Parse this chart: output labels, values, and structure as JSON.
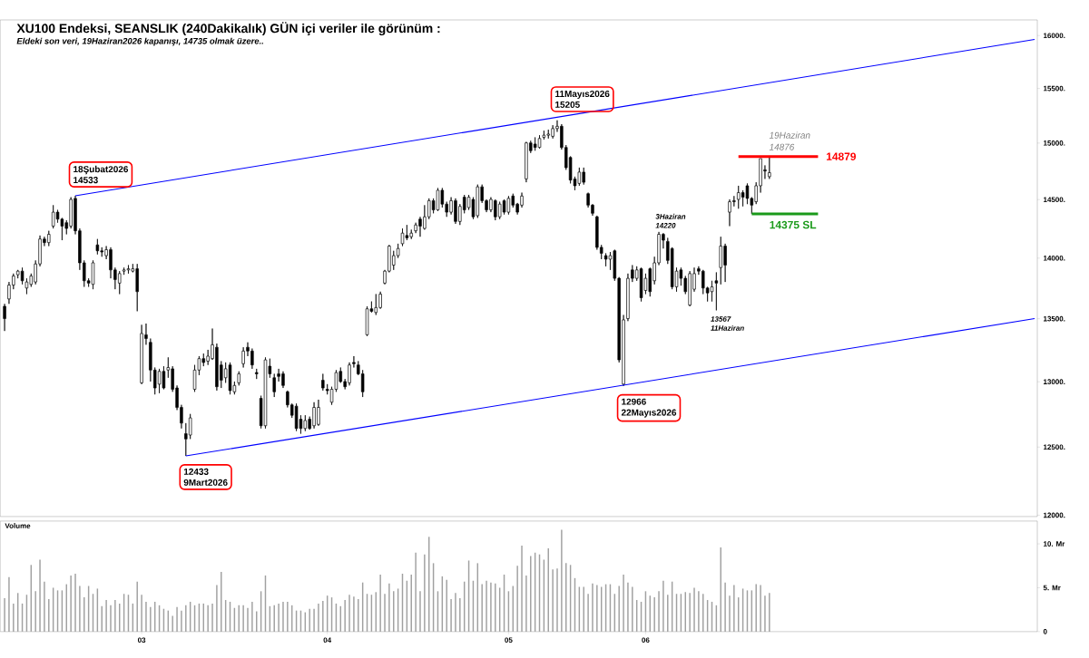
{
  "chart_data": [
    {
      "type": "candlestick",
      "title": "XU100 Endeksi, SEANSLIK (240Dakikalık) GÜN içi veriler ile görünüm :",
      "subtitle": "Eldeki son veri, 19Haziran2026 kapanışı, 14735 olmak üzere..",
      "categories": [
        null,
        null,
        null,
        null,
        null,
        null,
        null,
        null,
        null,
        null,
        null,
        null,
        null,
        null,
        null,
        null,
        null,
        null,
        null,
        null,
        null,
        null,
        null,
        null,
        null,
        null,
        null,
        null,
        null,
        null,
        null,
        "03",
        null,
        null,
        null,
        null,
        null,
        null,
        null,
        null,
        null,
        null,
        null,
        null,
        null,
        null,
        null,
        null,
        null,
        null,
        null,
        null,
        null,
        null,
        null,
        null,
        null,
        null,
        null,
        null,
        null,
        null,
        null,
        null,
        null,
        null,
        null,
        null,
        null,
        null,
        null,
        null,
        null,
        "04",
        null,
        null,
        null,
        null,
        null,
        null,
        null,
        null,
        null,
        null,
        null,
        null,
        null,
        null,
        null,
        null,
        null,
        null,
        null,
        null,
        null,
        null,
        null,
        null,
        null,
        null,
        null,
        null,
        null,
        null,
        null,
        null,
        null,
        null,
        null,
        null,
        null,
        null,
        null,
        null,
        "05",
        null,
        null,
        null,
        null,
        null,
        null,
        null,
        null,
        null,
        null,
        null,
        null,
        null,
        null,
        null,
        null,
        null,
        null,
        null,
        null,
        null,
        null,
        null,
        null,
        null,
        null,
        null,
        null,
        null,
        null,
        "06",
        null,
        null,
        null,
        null,
        null,
        null,
        null,
        null,
        null,
        null,
        null,
        null,
        null,
        null,
        null,
        null,
        null,
        null,
        null,
        null,
        null,
        null,
        null,
        null,
        null,
        null,
        null,
        null,
        null,
        null,
        null,
        null,
        null,
        null,
        null,
        null,
        null,
        null,
        null,
        null,
        null,
        null,
        null,
        null,
        null,
        null,
        null,
        null,
        null,
        null,
        null,
        null,
        null,
        null,
        null,
        null,
        null,
        null,
        null,
        null,
        null,
        null,
        null,
        null,
        null,
        null,
        null,
        null,
        null,
        null,
        null,
        null,
        null,
        null,
        null,
        null,
        null,
        null,
        null,
        null,
        null,
        null,
        null,
        null,
        null,
        null,
        null,
        null
      ],
      "ohlc": [
        [
          13600,
          13620,
          13400,
          13500
        ],
        [
          13660,
          13800,
          13620,
          13775
        ],
        [
          13775,
          13870,
          13740,
          13850
        ],
        [
          13860,
          13900,
          13830,
          13890
        ],
        [
          13890,
          13920,
          13780,
          13810
        ],
        [
          13750,
          13830,
          13700,
          13800
        ],
        [
          13780,
          13870,
          13760,
          13850
        ],
        [
          13800,
          13980,
          13780,
          13950
        ],
        [
          13950,
          14190,
          13930,
          14160
        ],
        [
          14160,
          14180,
          14100,
          14130
        ],
        [
          14130,
          14230,
          14100,
          14200
        ],
        [
          14270,
          14450,
          14250,
          14390
        ],
        [
          14390,
          14410,
          14300,
          14330
        ],
        [
          14330,
          14340,
          14150,
          14270
        ],
        [
          14300,
          14320,
          14200,
          14250
        ],
        [
          14270,
          14520,
          14250,
          14500
        ],
        [
          14510,
          14533,
          14200,
          14230
        ],
        [
          14230,
          14250,
          13900,
          13960
        ],
        [
          13960,
          13980,
          13760,
          13810
        ],
        [
          13810,
          13830,
          13760,
          13790
        ],
        [
          13780,
          13980,
          13740,
          13960
        ],
        [
          14110,
          14160,
          14030,
          14060
        ],
        [
          14060,
          14090,
          14010,
          14050
        ],
        [
          14020,
          14100,
          13990,
          14070
        ],
        [
          14070,
          14090,
          13830,
          13900
        ],
        [
          13900,
          13920,
          13740,
          13820
        ],
        [
          13790,
          13890,
          13700,
          13870
        ],
        [
          13890,
          13920,
          13860,
          13900
        ],
        [
          13900,
          13940,
          13870,
          13910
        ],
        [
          13890,
          13950,
          13880,
          13910
        ],
        [
          13910,
          13950,
          13560,
          13720
        ],
        [
          12990,
          13450,
          12980,
          13380
        ],
        [
          13370,
          13460,
          13290,
          13340
        ],
        [
          13310,
          13340,
          13000,
          13090
        ],
        [
          13090,
          13110,
          12900,
          12950
        ],
        [
          12980,
          13100,
          12910,
          13080
        ],
        [
          13080,
          13120,
          12940,
          12950
        ],
        [
          13090,
          13190,
          13030,
          13110
        ],
        [
          13100,
          13120,
          12920,
          12940
        ],
        [
          12950,
          12970,
          12780,
          12800
        ],
        [
          12800,
          12820,
          12640,
          12680
        ],
        [
          12600,
          12680,
          12433,
          12560
        ],
        [
          12590,
          12750,
          12560,
          12720
        ],
        [
          12940,
          13130,
          12920,
          13090
        ],
        [
          13090,
          13200,
          13050,
          13180
        ],
        [
          13180,
          13220,
          13120,
          13150
        ],
        [
          13160,
          13250,
          13130,
          13200
        ],
        [
          13180,
          13420,
          13170,
          13290
        ],
        [
          13270,
          13300,
          12930,
          12960
        ],
        [
          13130,
          13160,
          12950,
          13010
        ],
        [
          13030,
          13150,
          12990,
          13100
        ],
        [
          13130,
          13150,
          12900,
          12930
        ],
        [
          12920,
          13000,
          12900,
          12970
        ],
        [
          12990,
          13080,
          12970,
          13060
        ],
        [
          13140,
          13270,
          13110,
          13240
        ],
        [
          13270,
          13310,
          13200,
          13240
        ],
        [
          13240,
          13260,
          13100,
          13130
        ],
        [
          13070,
          13100,
          13020,
          13060
        ],
        [
          12870,
          12890,
          12640,
          12660
        ],
        [
          12660,
          13190,
          12640,
          13170
        ],
        [
          13120,
          13180,
          13030,
          13060
        ],
        [
          13030,
          13060,
          12880,
          12920
        ],
        [
          13060,
          13100,
          13000,
          13040
        ],
        [
          13060,
          13080,
          12950,
          12970
        ],
        [
          12920,
          12930,
          12800,
          12820
        ],
        [
          12820,
          12830,
          12720,
          12740
        ],
        [
          12810,
          12830,
          12620,
          12640
        ],
        [
          12710,
          12740,
          12600,
          12640
        ],
        [
          12640,
          12740,
          12620,
          12700
        ],
        [
          12710,
          12730,
          12630,
          12640
        ],
        [
          12660,
          12840,
          12640,
          12800
        ],
        [
          12670,
          12860,
          12660,
          12800
        ],
        [
          13010,
          13060,
          12930,
          12950
        ],
        [
          12940,
          12980,
          12900,
          12930
        ],
        [
          12840,
          12960,
          12820,
          12940
        ],
        [
          12940,
          13090,
          12920,
          13070
        ],
        [
          13080,
          13110,
          12990,
          13000
        ],
        [
          13000,
          13020,
          12940,
          12960
        ],
        [
          12990,
          13150,
          12970,
          13130
        ],
        [
          13150,
          13200,
          13110,
          13140
        ],
        [
          13130,
          13160,
          13050,
          13060
        ],
        [
          13060,
          13090,
          12880,
          12920
        ],
        [
          13370,
          13600,
          13360,
          13580
        ],
        [
          13580,
          13640,
          13550,
          13560
        ],
        [
          13550,
          13700,
          13530,
          13590
        ],
        [
          13590,
          13720,
          13580,
          13700
        ],
        [
          13790,
          13900,
          13780,
          13890
        ],
        [
          13890,
          14110,
          13880,
          14100
        ],
        [
          13940,
          14060,
          13900,
          14020
        ],
        [
          14020,
          14120,
          14000,
          14080
        ],
        [
          14120,
          14250,
          14100,
          14210
        ],
        [
          14190,
          14280,
          14150,
          14170
        ],
        [
          14180,
          14240,
          14160,
          14210
        ],
        [
          14230,
          14300,
          14210,
          14280
        ],
        [
          14330,
          14350,
          14180,
          14270
        ],
        [
          14250,
          14450,
          14240,
          14350
        ],
        [
          14350,
          14510,
          14330,
          14490
        ],
        [
          14490,
          14510,
          14380,
          14410
        ],
        [
          14410,
          14600,
          14400,
          14580
        ],
        [
          14580,
          14600,
          14430,
          14460
        ],
        [
          14460,
          14480,
          14350,
          14390
        ],
        [
          14390,
          14520,
          14370,
          14490
        ],
        [
          14490,
          14510,
          14290,
          14310
        ],
        [
          14310,
          14460,
          14280,
          14440
        ],
        [
          14520,
          14540,
          14380,
          14410
        ],
        [
          14430,
          14540,
          14410,
          14520
        ],
        [
          14500,
          14520,
          14330,
          14350
        ],
        [
          14360,
          14630,
          14340,
          14610
        ],
        [
          14610,
          14630,
          14470,
          14490
        ],
        [
          14490,
          14500,
          14390,
          14410
        ],
        [
          14410,
          14520,
          14390,
          14500
        ],
        [
          14490,
          14500,
          14320,
          14350
        ],
        [
          14350,
          14480,
          14330,
          14460
        ],
        [
          14490,
          14500,
          14370,
          14390
        ],
        [
          14390,
          14530,
          14370,
          14510
        ],
        [
          14530,
          14550,
          14430,
          14450
        ],
        [
          14460,
          14470,
          14370,
          14390
        ],
        [
          14450,
          14560,
          14430,
          14530
        ],
        [
          14680,
          15010,
          14650,
          15000
        ],
        [
          15000,
          15020,
          14910,
          14930
        ],
        [
          14990,
          15050,
          14930,
          14960
        ],
        [
          14960,
          15070,
          14950,
          15040
        ],
        [
          15050,
          15110,
          15030,
          15070
        ],
        [
          15070,
          15120,
          15040,
          15080
        ],
        [
          15060,
          15160,
          15040,
          15130
        ],
        [
          15130,
          15205,
          15100,
          15150
        ],
        [
          15150,
          15170,
          14940,
          14960
        ],
        [
          14960,
          14980,
          14760,
          14780
        ],
        [
          14870,
          14880,
          14640,
          14670
        ],
        [
          14680,
          14700,
          14580,
          14620
        ],
        [
          14640,
          14780,
          14620,
          14740
        ],
        [
          14740,
          14780,
          14630,
          14650
        ],
        [
          14550,
          14560,
          14430,
          14450
        ],
        [
          14450,
          14460,
          14360,
          14380
        ],
        [
          14350,
          14360,
          14070,
          14090
        ],
        [
          14090,
          14110,
          13990,
          14040
        ],
        [
          14020,
          14040,
          13930,
          13990
        ],
        [
          13990,
          14050,
          13900,
          14020
        ],
        [
          14060,
          14070,
          13810,
          13830
        ],
        [
          13830,
          13840,
          13150,
          13170
        ],
        [
          12980,
          13530,
          12966,
          13490
        ],
        [
          13500,
          13870,
          13480,
          13830
        ],
        [
          13900,
          13940,
          13800,
          13830
        ],
        [
          13830,
          13930,
          13810,
          13900
        ],
        [
          13910,
          13920,
          13640,
          13670
        ],
        [
          13730,
          13870,
          13700,
          13830
        ],
        [
          13910,
          13920,
          13680,
          13720
        ],
        [
          13810,
          14010,
          13780,
          13960
        ],
        [
          13960,
          14220,
          13940,
          14200
        ],
        [
          14200,
          14210,
          14080,
          14150
        ],
        [
          14140,
          14170,
          13950,
          13980
        ],
        [
          14080,
          14090,
          13740,
          13760
        ],
        [
          13760,
          13920,
          13720,
          13890
        ],
        [
          13900,
          13920,
          13770,
          13830
        ],
        [
          13830,
          13850,
          13700,
          13720
        ],
        [
          13610,
          13890,
          13600,
          13870
        ],
        [
          13740,
          13920,
          13720,
          13870
        ],
        [
          13910,
          13930,
          13860,
          13890
        ],
        [
          13890,
          13900,
          13700,
          13750
        ],
        [
          13750,
          13760,
          13640,
          13710
        ],
        [
          13720,
          13810,
          13640,
          13760
        ],
        [
          13810,
          13880,
          13567,
          13790
        ],
        [
          13920,
          14180,
          13780,
          14100
        ],
        [
          14100,
          14120,
          13800,
          13940
        ],
        [
          14390,
          14500,
          14270,
          14480
        ],
        [
          14490,
          14530,
          14440,
          14480
        ],
        [
          14500,
          14620,
          14420,
          14560
        ],
        [
          14560,
          14580,
          14440,
          14520
        ],
        [
          14620,
          14640,
          14460,
          14510
        ],
        [
          14510,
          14520,
          14375,
          14450
        ],
        [
          14480,
          14650,
          14460,
          14620
        ],
        [
          14620,
          14860,
          14560,
          14860
        ],
        [
          14760,
          14800,
          14680,
          14750
        ],
        [
          14700,
          14876,
          14680,
          14735
        ],
        null,
        null,
        null,
        null,
        null,
        null,
        null,
        null,
        null,
        null,
        null,
        null,
        null,
        null,
        null,
        null,
        null,
        null,
        null,
        null,
        null,
        null,
        null,
        null,
        null,
        null,
        null,
        null,
        null,
        null,
        null,
        null,
        null,
        null,
        null,
        null,
        null,
        null,
        null,
        null,
        null,
        null,
        null,
        null,
        null,
        null,
        null,
        null,
        null,
        null,
        null,
        null,
        null,
        null,
        null,
        null,
        null,
        null,
        null,
        null
      ],
      "series": [
        {
          "type": "line",
          "color": "#0000ff",
          "values": [
            null,
            null,
            null,
            null,
            null,
            null,
            null,
            null,
            null,
            null,
            null,
            null,
            null,
            null,
            null,
            null,
            14533,
            null,
            null,
            null,
            null,
            null,
            null,
            null,
            null,
            null,
            null,
            null,
            null,
            null,
            null,
            null,
            null,
            null,
            null,
            null,
            null,
            null,
            null,
            null,
            null,
            null,
            null,
            null,
            null,
            null,
            null,
            null,
            null,
            null,
            null,
            null,
            null,
            null,
            null,
            null,
            null,
            null,
            null,
            null,
            null,
            null,
            null,
            null,
            null,
            null,
            null,
            null,
            null,
            null,
            null,
            null,
            null,
            null,
            null,
            null,
            null,
            null,
            null,
            null,
            null,
            null,
            null,
            null,
            null,
            null,
            null,
            null,
            null,
            null,
            null,
            null,
            null,
            null,
            null,
            null,
            null,
            null,
            null,
            null,
            null,
            null,
            null,
            null,
            null,
            null,
            null,
            null,
            null,
            null,
            null,
            null,
            null,
            null,
            null,
            null,
            null,
            null,
            null,
            null,
            null,
            null,
            null,
            null,
            null,
            null,
            null,
            null,
            null,
            null,
            null,
            null,
            null,
            null,
            null,
            null,
            null,
            null,
            null,
            null,
            null,
            null,
            null,
            null,
            null,
            null,
            null,
            null,
            null,
            null,
            null,
            null,
            null,
            null,
            null,
            null,
            null,
            null,
            null,
            null,
            null,
            null,
            null,
            null,
            null,
            null,
            null,
            null,
            null,
            null,
            null,
            null,
            null,
            null,
            null,
            null,
            null,
            null,
            null,
            null,
            null,
            null,
            null,
            null,
            null,
            null,
            null,
            null,
            null,
            null,
            null,
            null,
            null,
            null,
            null,
            null,
            null,
            null,
            null,
            null,
            null,
            null,
            null,
            null,
            null,
            null,
            null,
            null,
            null,
            null,
            null,
            null,
            null,
            null,
            null,
            null,
            null,
            null,
            null,
            null,
            null,
            null,
            null,
            null,
            null,
            null,
            null,
            null,
            null,
            null,
            null,
            null,
            null,
            15960
          ]
        },
        {
          "type": "line",
          "color": "#0000ff",
          "values": [
            null,
            null,
            null,
            null,
            null,
            null,
            null,
            null,
            null,
            null,
            null,
            null,
            null,
            null,
            null,
            null,
            null,
            null,
            null,
            null,
            null,
            null,
            null,
            null,
            null,
            null,
            null,
            null,
            null,
            null,
            null,
            null,
            null,
            null,
            null,
            null,
            null,
            null,
            null,
            null,
            null,
            12433,
            null,
            null,
            null,
            null,
            null,
            null,
            null,
            null,
            null,
            null,
            null,
            null,
            null,
            null,
            null,
            null,
            null,
            null,
            null,
            null,
            null,
            null,
            null,
            null,
            null,
            null,
            null,
            null,
            null,
            null,
            null,
            null,
            null,
            null,
            null,
            null,
            null,
            null,
            null,
            null,
            null,
            null,
            null,
            null,
            null,
            null,
            null,
            null,
            null,
            null,
            null,
            null,
            null,
            null,
            null,
            null,
            null,
            null,
            null,
            null,
            null,
            null,
            null,
            null,
            null,
            null,
            null,
            null,
            null,
            null,
            null,
            null,
            null,
            null,
            null,
            null,
            null,
            null,
            null,
            null,
            null,
            null,
            null,
            null,
            null,
            null,
            null,
            null,
            null,
            null,
            null,
            null,
            null,
            null,
            null,
            null,
            null,
            null,
            null,
            null,
            null,
            null,
            null,
            null,
            null,
            null,
            null,
            null,
            null,
            null,
            null,
            null,
            null,
            null,
            null,
            null,
            null,
            null,
            null,
            null,
            null,
            null,
            null,
            null,
            null,
            null,
            null,
            null,
            null,
            null,
            null,
            null,
            null,
            null,
            null,
            null,
            null,
            null,
            null,
            null,
            null,
            null,
            null,
            null,
            null,
            null,
            null,
            null,
            null,
            null,
            null,
            null,
            null,
            null,
            null,
            null,
            null,
            null,
            null,
            null,
            null,
            null,
            null,
            null,
            null,
            null,
            null,
            null,
            null,
            null,
            null,
            null,
            null,
            null,
            null,
            null,
            null,
            null,
            null,
            null,
            null,
            null,
            null,
            null,
            null,
            null,
            null,
            null,
            null,
            null,
            null,
            13500
          ]
        }
      ],
      "ylim": [
        11990,
        16150
      ],
      "log": "y",
      "tick_labels": "y",
      "yticks": [
        {
          "value": 12000,
          "label": "12000."
        },
        {
          "value": 12500,
          "label": "12500."
        },
        {
          "value": 13000,
          "label": "13000."
        },
        {
          "value": 13500,
          "label": "13500."
        },
        {
          "value": 14000,
          "label": "14000."
        },
        {
          "value": 14500,
          "label": "14500."
        },
        {
          "value": 15000,
          "label": "15000."
        },
        {
          "value": 15500,
          "label": "15500."
        },
        {
          "value": 16000,
          "label": "16000."
        }
      ],
      "annotations": [
        {
          "text": "18Şubat2026",
          "y": 14533
        },
        {
          "text": "14533",
          "y": 14533
        },
        "11Mayıs2026",
        {
          "text": "15205",
          "y": 15205
        },
        {
          "text": "12433",
          "y": 12433
        },
        {
          "text": "9Mart2026",
          "y": 12433
        },
        {
          "text": "12966",
          "y": 12966
        },
        {
          "text": "22Mayıs2026",
          "y": 12966
        },
        "3Haziran",
        {
          "text": "14220",
          "y": 14220
        },
        "13567",
        "11Haziran",
        {
          "text": "19Haziran",
          "y": 14876
        },
        {
          "text": "14876",
          "y": 14876
        }
      ],
      "ref_lines": [
        {
          "axis": "y",
          "value": 14879,
          "label": "14879",
          "color": "#ff0000"
        },
        {
          "axis": "y",
          "value": 14375,
          "label": "14375 SL",
          "color": "#1a9a1a"
        }
      ]
    },
    {
      "type": "bar",
      "title": "Volume",
      "color": "#a0a0a0",
      "categories": [
        null,
        null,
        null,
        null,
        null,
        null,
        null,
        null,
        null,
        null,
        null,
        null,
        null,
        null,
        null,
        null,
        null,
        null,
        null,
        null,
        null,
        null,
        null,
        null,
        null,
        null,
        null,
        null,
        null,
        null,
        null,
        "03",
        null,
        null,
        null,
        null,
        null,
        null,
        null,
        null,
        null,
        null,
        null,
        null,
        null,
        null,
        null,
        null,
        null,
        null,
        null,
        null,
        null,
        null,
        null,
        null,
        null,
        null,
        null,
        null,
        null,
        null,
        null,
        null,
        null,
        null,
        null,
        null,
        null,
        null,
        null,
        null,
        null,
        "04",
        null,
        null,
        null,
        null,
        null,
        null,
        null,
        null,
        null,
        null,
        null,
        null,
        null,
        null,
        null,
        null,
        null,
        null,
        null,
        null,
        null,
        null,
        null,
        null,
        null,
        null,
        null,
        null,
        null,
        null,
        null,
        null,
        null,
        null,
        null,
        null,
        null,
        null,
        null,
        null,
        "05",
        null,
        null,
        null,
        null,
        null,
        null,
        null,
        null,
        null,
        null,
        null,
        null,
        null,
        null,
        null,
        null,
        null,
        null,
        null,
        null,
        null,
        null,
        null,
        null,
        null,
        null,
        null,
        null,
        null,
        null,
        "06",
        null,
        null,
        null,
        null,
        null,
        null,
        null,
        null,
        null,
        null,
        null,
        null,
        null,
        null,
        null,
        null,
        null,
        null,
        null,
        null,
        null,
        null,
        null,
        null,
        null,
        null,
        null,
        null,
        null,
        null,
        null,
        null,
        null,
        null,
        null,
        null,
        null,
        null,
        null,
        null,
        null,
        null,
        null,
        null,
        null,
        null,
        null,
        null,
        null,
        null,
        null,
        null,
        null,
        null,
        null,
        null,
        null,
        null,
        null,
        null,
        null,
        null,
        null,
        null,
        null,
        null,
        null,
        null,
        null,
        null,
        null,
        null,
        null,
        null,
        null,
        null,
        null,
        null,
        null,
        null,
        null,
        null,
        null,
        null,
        null,
        null,
        null,
        null
      ],
      "values": [
        3.8,
        6.2,
        3.2,
        4.4,
        3.2,
        4.2,
        7.6,
        4.6,
        8.2,
        5.7,
        3.7,
        5.0,
        4.7,
        4.7,
        5.4,
        6.4,
        6.6,
        5.2,
        3.9,
        5.2,
        4.3,
        4.9,
        2.9,
        3.6,
        3.0,
        3.6,
        3.2,
        4.3,
        4.2,
        3.2,
        5.7,
        4.2,
        3.4,
        2.8,
        3.4,
        3.0,
        2.6,
        2.4,
        1.8,
        2.8,
        2.4,
        3.0,
        3.4,
        3.0,
        3.2,
        3.2,
        3.0,
        3.2,
        5.3,
        6.8,
        3.6,
        3.4,
        2.7,
        3.0,
        3.0,
        2.7,
        3.4,
        2.3,
        4.6,
        6.4,
        2.9,
        3.0,
        3.2,
        3.4,
        3.4,
        3.0,
        2.4,
        2.4,
        2.2,
        2.6,
        2.6,
        3.2,
        3.5,
        4.1,
        3.9,
        3.2,
        2.9,
        3.6,
        4.2,
        4.0,
        3.7,
        5.6,
        4.3,
        4.2,
        4.5,
        6.5,
        4.3,
        5.5,
        4.6,
        4.9,
        6.6,
        5.8,
        6.5,
        9.0,
        4.6,
        8.8,
        10.8,
        7.8,
        4.6,
        6.3,
        5.9,
        3.7,
        4.4,
        3.8,
        5.7,
        8.1,
        5.8,
        7.8,
        5.4,
        5.8,
        5.6,
        5.5,
        5.0,
        6.5,
        4.6,
        5.2,
        7.5,
        9.8,
        6.4,
        8.6,
        9.0,
        8.8,
        8.2,
        9.5,
        7.1,
        7.2,
        11.6,
        7.8,
        7.6,
        6.1,
        5.1,
        5.1,
        4.3,
        5.5,
        5.3,
        5.1,
        5.4,
        5.4,
        4.3,
        5.2,
        6.5,
        5.6,
        5.1,
        3.6,
        3.4,
        4.6,
        4.1,
        3.9,
        4.6,
        5.8,
        4.2,
        5.7,
        4.3,
        4.3,
        4.5,
        4.4,
        5.0,
        4.6,
        4.3,
        3.6,
        3.4,
        3.0,
        9.6,
        5.6,
        4.1,
        5.3,
        3.9,
        4.9,
        4.7,
        4.7,
        5.4,
        5.3,
        4.1,
        4.4,
        null,
        null,
        null,
        null,
        null,
        null,
        null,
        null,
        null,
        null,
        null,
        null,
        null,
        null,
        null,
        null,
        null,
        null,
        null,
        null,
        null,
        null,
        null,
        null,
        null,
        null,
        null,
        null,
        null,
        null,
        null,
        null,
        null,
        null,
        null,
        null,
        null,
        null,
        null,
        null,
        null,
        null,
        null,
        null,
        null,
        null,
        null,
        null,
        null,
        null,
        null,
        null,
        null,
        null,
        null,
        null,
        null,
        null,
        null,
        null
      ],
      "ylim": [
        0,
        12.6
      ],
      "yticks": [
        0,
        {
          "value": 5,
          "label": "5. Mr"
        },
        {
          "value": 10,
          "label": "10. Mr"
        }
      ]
    }
  ]
}
